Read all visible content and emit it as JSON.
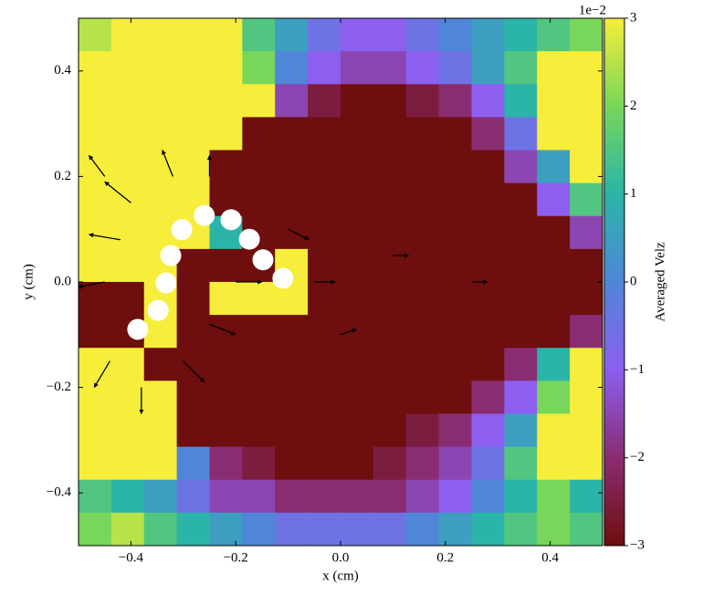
{
  "chart_data": {
    "type": "heatmap",
    "xlabel": "x (cm)",
    "ylabel": "y (cm)",
    "colorbar_label": "Averaged Velz",
    "colorbar_offset": "1e−2",
    "xlim": [
      -0.5,
      0.5
    ],
    "ylim": [
      -0.5,
      0.5
    ],
    "clim": [
      -3,
      3
    ],
    "xticks": [
      {
        "value": -0.4,
        "label": "−0.4"
      },
      {
        "value": -0.2,
        "label": "−0.2"
      },
      {
        "value": 0,
        "label": "0.0"
      },
      0.2,
      0.4
    ],
    "yticks": [
      {
        "value": -0.4,
        "label": "−0.4"
      },
      {
        "value": -0.2,
        "label": "−0.2"
      },
      {
        "value": 0,
        "label": "0.0"
      },
      0.2,
      0.4
    ],
    "cticks": [
      {
        "value": -3,
        "label": "−3"
      },
      {
        "value": -2,
        "label": "−2"
      },
      {
        "value": -1,
        "label": "−1"
      },
      0,
      1,
      2,
      3
    ],
    "colormap": [
      "#6e0e0e",
      "#8a2c72",
      "#8c5ff0",
      "#4f86d8",
      "#2bb5a8",
      "#78d65a",
      "#f6ee3a"
    ],
    "z": [
      [
        2.5,
        3,
        3,
        3,
        3,
        1.5,
        0.5,
        -0.5,
        -1,
        -1,
        -0.5,
        0,
        0.5,
        1,
        1.5,
        2
      ],
      [
        3,
        3,
        3,
        3,
        3,
        2,
        0,
        -1,
        -1.5,
        -1.5,
        -1,
        -0.5,
        0.5,
        1.5,
        3,
        3
      ],
      [
        3,
        3,
        3,
        3,
        3,
        3,
        -1.5,
        -2.5,
        -3,
        -3,
        -2.5,
        -2,
        -1,
        1,
        3,
        3
      ],
      [
        3,
        3,
        3,
        3,
        3,
        -3,
        -3,
        -3,
        -3,
        -3,
        -3,
        -3,
        -2,
        -0.5,
        3,
        3
      ],
      [
        3,
        3,
        3,
        3,
        -3,
        -3,
        -3,
        -3,
        -3,
        -3,
        -3,
        -3,
        -3,
        -1.5,
        0.5,
        3
      ],
      [
        3,
        3,
        3,
        3,
        -3,
        -3,
        -3,
        -3,
        -3,
        -3,
        -3,
        -3,
        -3,
        -3,
        -1,
        1.5
      ],
      [
        3,
        3,
        3,
        3,
        1,
        -3,
        -3,
        -3,
        -3,
        -3,
        -3,
        -3,
        -3,
        -3,
        -3,
        -1.5
      ],
      [
        3,
        3,
        3,
        -3,
        -3,
        -3,
        3,
        -3,
        -3,
        -3,
        -3,
        -3,
        -3,
        -3,
        -3,
        -3
      ],
      [
        -3,
        -3,
        3,
        -3,
        3,
        3,
        3,
        -3,
        -3,
        -3,
        -3,
        -3,
        -3,
        -3,
        -3,
        -3
      ],
      [
        -3,
        -3,
        3,
        -3,
        -3,
        -3,
        -3,
        -3,
        -3,
        -3,
        -3,
        -3,
        -3,
        -3,
        -3,
        -2
      ],
      [
        3,
        3,
        -3,
        -3,
        -3,
        -3,
        -3,
        -3,
        -3,
        -3,
        -3,
        -3,
        -3,
        -2,
        1,
        3
      ],
      [
        3,
        3,
        3,
        -3,
        -3,
        -3,
        -3,
        -3,
        -3,
        -3,
        -3,
        -3,
        -2,
        -1,
        2,
        3
      ],
      [
        3,
        3,
        3,
        -3,
        -3,
        -3,
        -3,
        -3,
        -3,
        -3,
        -2.5,
        -2,
        -1,
        0.5,
        3,
        3
      ],
      [
        3,
        3,
        3,
        0,
        -2,
        -2.5,
        -3,
        -3,
        -3,
        -2.5,
        -2,
        -1.5,
        -0.5,
        1.5,
        3,
        3
      ],
      [
        1.5,
        1,
        0.5,
        -0.5,
        -1.5,
        -1.5,
        -2,
        -2,
        -2,
        -2,
        -1.5,
        -1,
        0,
        1,
        2,
        1
      ],
      [
        2,
        2.5,
        1.5,
        1,
        0.5,
        0,
        -0.5,
        -0.5,
        -0.5,
        -0.5,
        0,
        0.5,
        1,
        1.5,
        2,
        1.5
      ]
    ],
    "quiver": {
      "color": "#000000",
      "x": [
        -0.45,
        -0.4,
        -0.42,
        -0.45,
        -0.44,
        -0.38,
        -0.3,
        -0.25,
        -0.2,
        -0.05,
        0.1,
        0.25,
        -0.32,
        -0.25,
        -0.1,
        0.0
      ],
      "y": [
        0.2,
        0.15,
        0.08,
        0.0,
        -0.15,
        -0.2,
        -0.15,
        -0.08,
        0.0,
        0.0,
        0.05,
        0.0,
        0.2,
        0.2,
        0.1,
        -0.1
      ],
      "u": [
        -0.03,
        -0.05,
        -0.06,
        -0.05,
        -0.03,
        0.0,
        0.04,
        0.05,
        0.05,
        0.04,
        0.03,
        0.03,
        -0.02,
        0.0,
        0.04,
        0.03
      ],
      "v": [
        0.04,
        0.04,
        0.01,
        -0.01,
        -0.05,
        -0.05,
        -0.04,
        -0.02,
        0.0,
        0.0,
        0.0,
        0.0,
        0.05,
        0.04,
        -0.02,
        0.01
      ]
    },
    "particles": {
      "color": "#ffffff",
      "radius": 0.02,
      "x": [
        -0.387,
        -0.348,
        -0.333,
        -0.324,
        -0.303,
        -0.26,
        -0.209,
        -0.174,
        -0.148,
        -0.11
      ],
      "y": [
        -0.09,
        -0.054,
        -0.002,
        0.05,
        0.099,
        0.126,
        0.118,
        0.081,
        0.042,
        0.007
      ]
    }
  }
}
